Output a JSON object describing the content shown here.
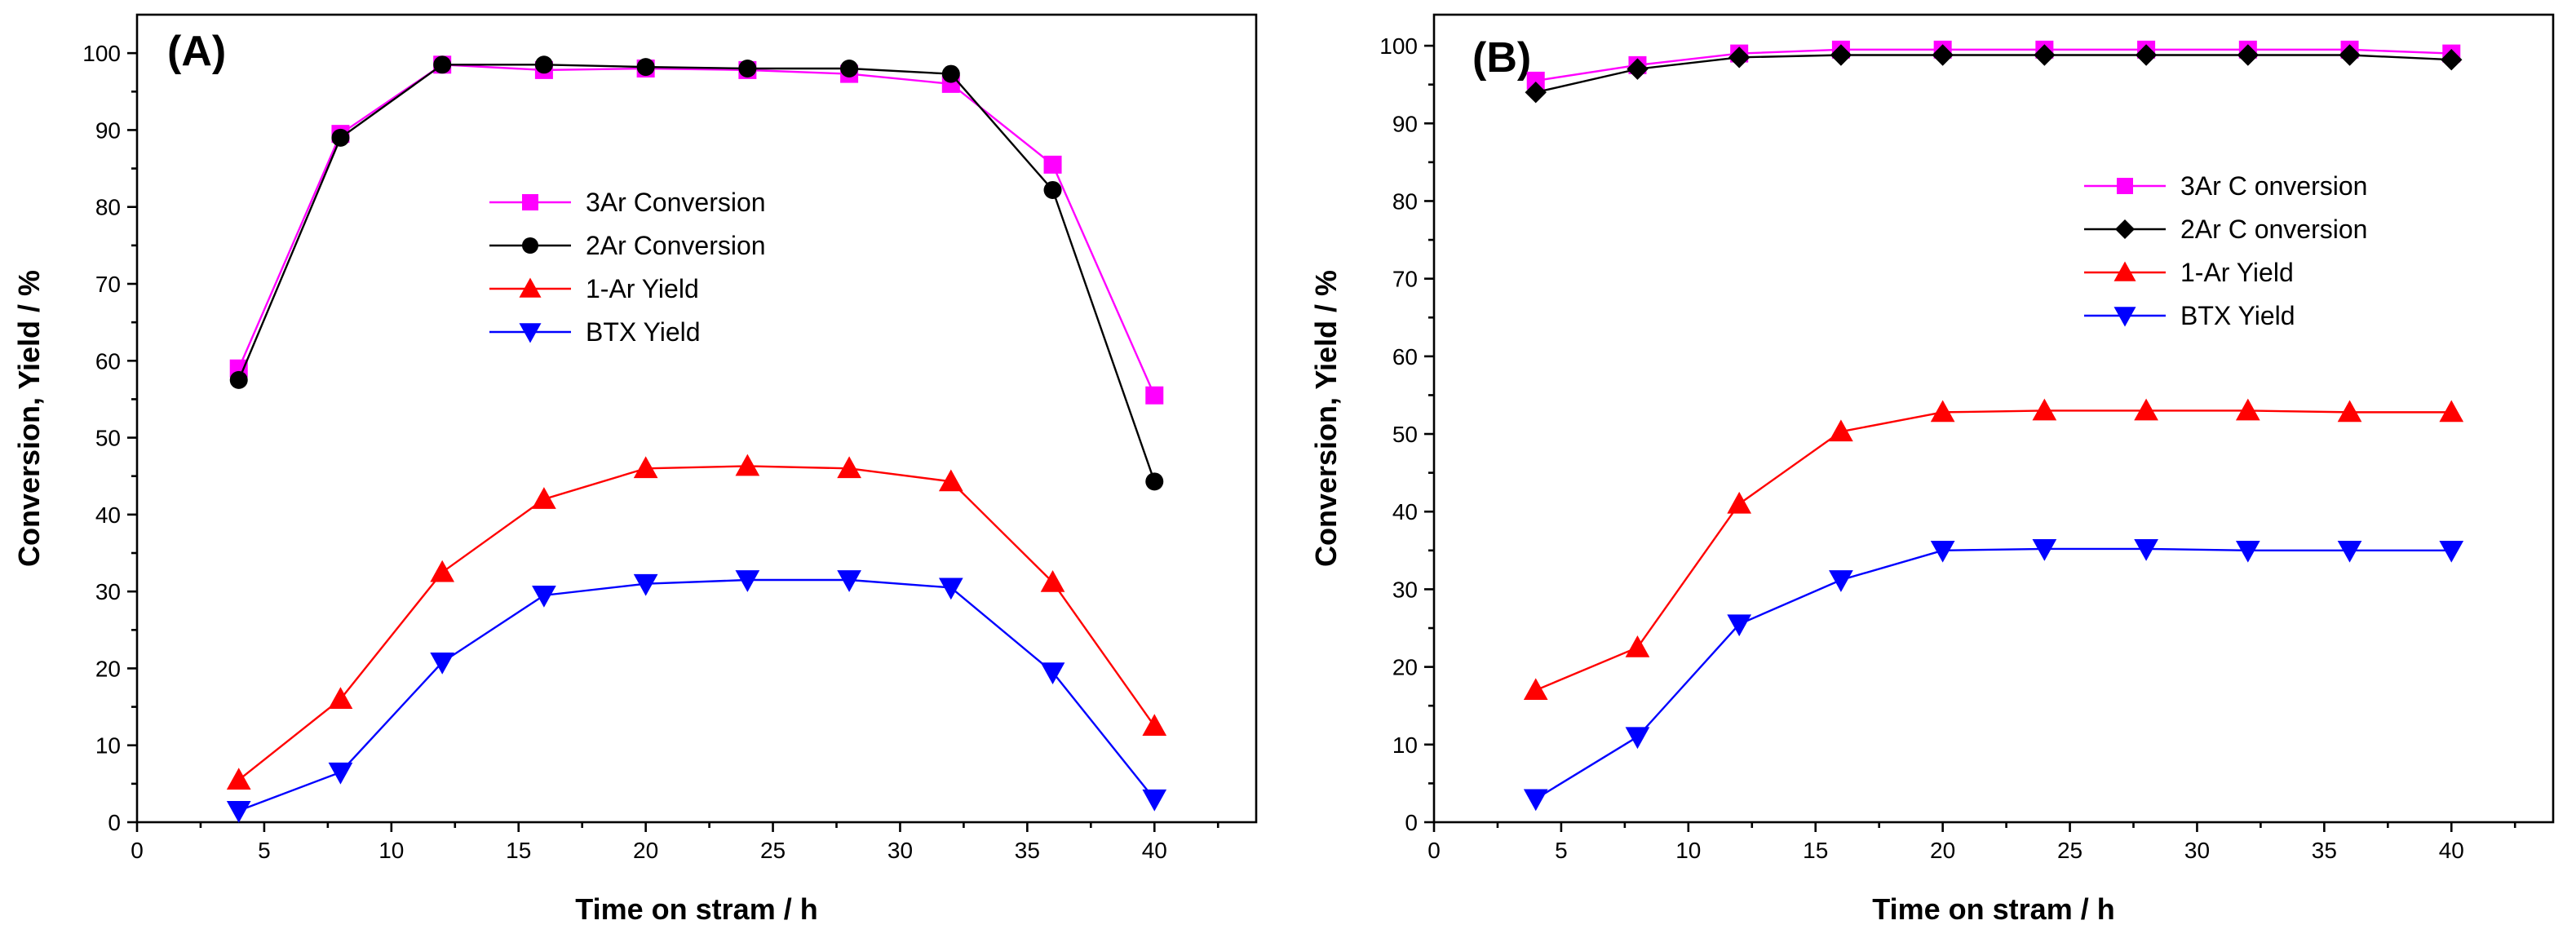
{
  "chart_data": [
    {
      "type": "line",
      "panel_label": "(A)",
      "xlabel": "Time on stram / h",
      "ylabel": "Conversion, Yield / %",
      "xlim": [
        0,
        44
      ],
      "ylim": [
        0,
        105
      ],
      "x_ticks": [
        0,
        5,
        10,
        15,
        20,
        25,
        30,
        35,
        40
      ],
      "y_ticks": [
        0,
        10,
        20,
        30,
        40,
        50,
        60,
        70,
        80,
        90,
        100
      ],
      "legend_position": "center",
      "x": [
        4,
        8,
        12,
        16,
        20,
        24,
        28,
        32,
        36,
        40
      ],
      "series": [
        {
          "name": "3Ar Conversion",
          "color": "#ff00ff",
          "marker": "square",
          "values": [
            59,
            89.5,
            98.5,
            97.8,
            98,
            97.8,
            97.3,
            96,
            85.5,
            55.5
          ]
        },
        {
          "name": "2Ar Conversion",
          "color": "#000000",
          "marker": "circle",
          "values": [
            57.5,
            89,
            98.5,
            98.5,
            98.2,
            98,
            98,
            97.3,
            82.2,
            44.3
          ]
        },
        {
          "name": "1-Ar Yield",
          "color": "#ff0000",
          "marker": "triangle-up",
          "values": [
            5.5,
            16,
            32.5,
            42,
            46,
            46.3,
            46,
            44.3,
            31.2,
            12.5
          ]
        },
        {
          "name": "BTX Yield",
          "color": "#0000ff",
          "marker": "triangle-down",
          "values": [
            1.5,
            6.5,
            20.8,
            29.5,
            31,
            31.5,
            31.5,
            30.5,
            19.5,
            3
          ]
        }
      ]
    },
    {
      "type": "line",
      "panel_label": "(B)",
      "xlabel": "Time on stram / h",
      "ylabel": "Conversion, Yield / %",
      "xlim": [
        0,
        44
      ],
      "ylim": [
        0,
        104
      ],
      "x_ticks": [
        0,
        5,
        10,
        15,
        20,
        25,
        30,
        35,
        40
      ],
      "y_ticks": [
        0,
        10,
        20,
        30,
        40,
        50,
        60,
        70,
        80,
        90,
        100
      ],
      "legend_position": "right",
      "x": [
        4,
        8,
        12,
        16,
        20,
        24,
        28,
        32,
        36,
        40
      ],
      "series": [
        {
          "name": "3Ar C onversion",
          "color": "#ff00ff",
          "marker": "square",
          "values": [
            95.5,
            97.5,
            99,
            99.5,
            99.5,
            99.5,
            99.5,
            99.5,
            99.5,
            99
          ]
        },
        {
          "name": "2Ar C onversion",
          "color": "#000000",
          "marker": "diamond",
          "values": [
            94,
            97,
            98.5,
            98.8,
            98.8,
            98.8,
            98.8,
            98.8,
            98.8,
            98.2
          ]
        },
        {
          "name": "1-Ar Yield",
          "color": "#ff0000",
          "marker": "triangle-up",
          "values": [
            17,
            22.5,
            41,
            50.3,
            52.8,
            53,
            53,
            53,
            52.8,
            52.8
          ]
        },
        {
          "name": "BTX Yield",
          "color": "#0000ff",
          "marker": "triangle-down",
          "values": [
            3,
            11,
            25.5,
            31.2,
            35,
            35.2,
            35.2,
            35,
            35,
            35
          ]
        }
      ]
    }
  ]
}
